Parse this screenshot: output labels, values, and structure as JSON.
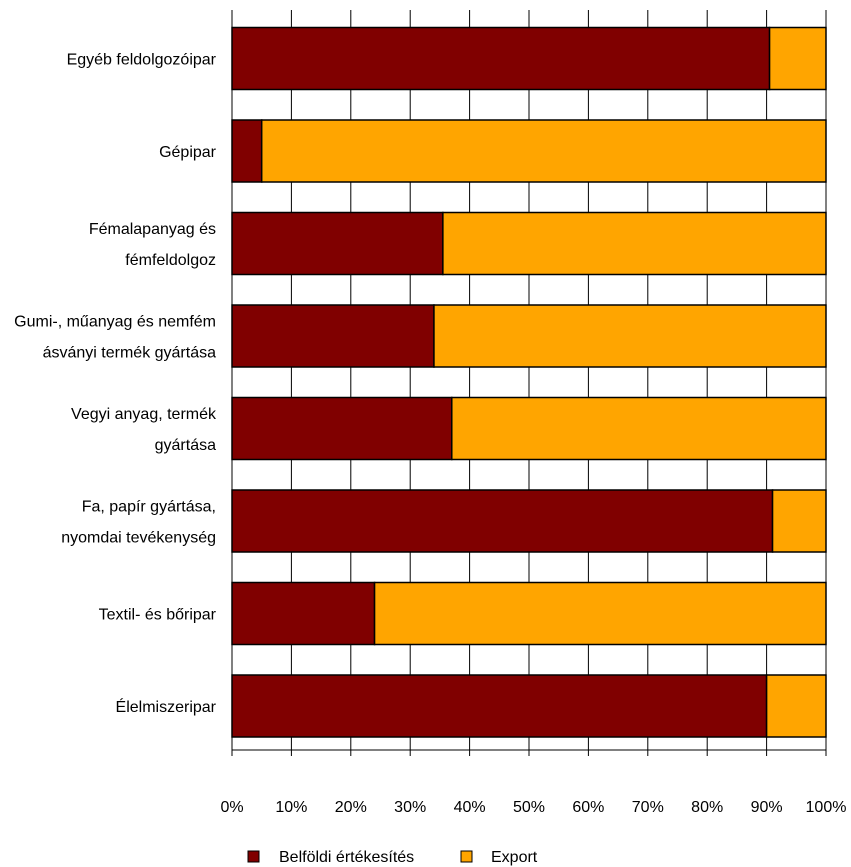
{
  "chart_data": {
    "type": "bar",
    "orientation": "horizontal",
    "stacked": "percent",
    "categories": [
      [
        "Egyéb feldolgozóipar"
      ],
      [
        "Gépipar"
      ],
      [
        "Fémalapanyag és",
        "fémfeldolgoz"
      ],
      [
        "Gumi-, műanyag és nemfém",
        "ásványi  termék gyártása"
      ],
      [
        "Vegyi anyag, termék",
        "gyártása"
      ],
      [
        "Fa, papír gyártása,",
        "nyomdai tevékenység"
      ],
      [
        "Textil- és bőripar"
      ],
      [
        "Élelmiszeripar"
      ]
    ],
    "series": [
      {
        "name": "Belföldi értékesítés",
        "color": "#800000",
        "values": [
          90.5,
          5,
          35.5,
          34,
          37,
          91,
          24,
          90
        ]
      },
      {
        "name": "Export",
        "color": "#FFA500",
        "values": [
          9.5,
          95,
          64.5,
          66,
          63,
          9,
          76,
          10
        ]
      }
    ],
    "xticks": [
      "0%",
      "10%",
      "20%",
      "30%",
      "40%",
      "50%",
      "60%",
      "70%",
      "80%",
      "90%",
      "100%"
    ],
    "xlim": [
      0,
      100
    ],
    "grid": true,
    "legend": "bottom",
    "title": "",
    "xlabel": "",
    "ylabel": ""
  }
}
